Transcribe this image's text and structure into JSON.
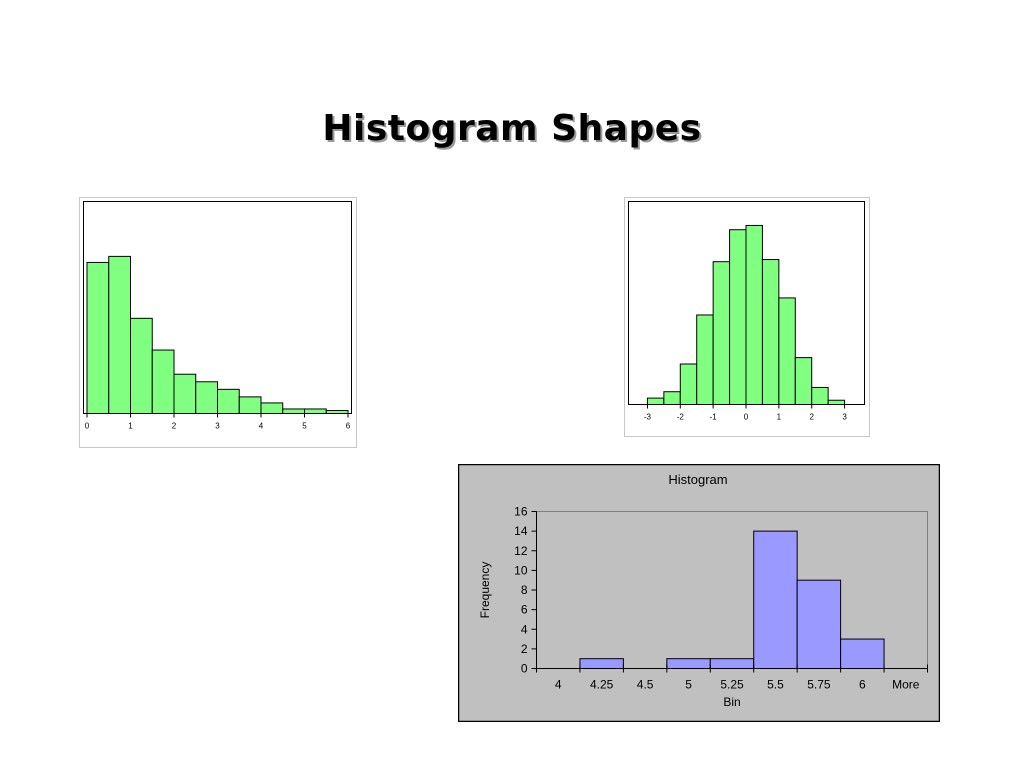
{
  "slide": {
    "title": "Histogram Shapes"
  },
  "chart_data": [
    {
      "type": "bar",
      "title": "",
      "xlabel": "",
      "ylabel": "",
      "x_ticks": [
        "0",
        "1",
        "2",
        "3",
        "4",
        "5",
        "6"
      ],
      "xlim": [
        0,
        6
      ],
      "bin_edges": [
        0,
        0.5,
        1,
        1.5,
        2,
        2.5,
        3,
        3.5,
        4,
        4.5,
        5,
        5.5,
        6
      ],
      "values": [
        100,
        104,
        63,
        42,
        26,
        21,
        16,
        11,
        7,
        3,
        3,
        2
      ],
      "ylim": [
        0,
        140
      ],
      "bar_color": "#80ff80",
      "grid": false
    },
    {
      "type": "bar",
      "title": "",
      "xlabel": "",
      "ylabel": "",
      "x_ticks": [
        "-3",
        "-2",
        "-1",
        "0",
        "1",
        "2",
        "3"
      ],
      "xlim": [
        -3.5,
        3.5
      ],
      "bin_edges": [
        -3,
        -2.5,
        -2,
        -1.5,
        -1,
        -0.5,
        0,
        0.5,
        1,
        1.5,
        2,
        2.5,
        3
      ],
      "values": [
        3,
        6,
        19,
        42,
        67,
        82,
        84,
        68,
        50,
        22,
        8,
        2
      ],
      "ylim": [
        0,
        95
      ],
      "bar_color": "#80ff80",
      "grid": false
    },
    {
      "type": "bar",
      "title": "Histogram",
      "xlabel": "Bin",
      "ylabel": "Frequency",
      "categories": [
        "4",
        "4.25",
        "4.5",
        "5",
        "5.25",
        "5.5",
        "5.75",
        "6",
        "More"
      ],
      "values": [
        0,
        1,
        0,
        1,
        1,
        14,
        9,
        3,
        0
      ],
      "ylim": [
        0,
        16
      ],
      "y_ticks": [
        0,
        2,
        4,
        6,
        8,
        10,
        12,
        14,
        16
      ],
      "bar_color": "#9999ff",
      "plot_bg": "#c0c0c0",
      "grid": false,
      "legend": "none"
    }
  ]
}
